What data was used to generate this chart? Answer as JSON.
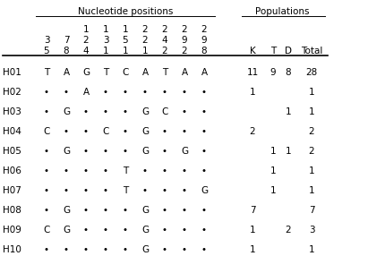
{
  "title_left": "Nucleotide positions",
  "title_right": "Populations",
  "subh_row1": [
    "",
    "",
    "1",
    "1",
    "1",
    "2",
    "2",
    "2",
    "2"
  ],
  "subh_row2": [
    "3",
    "7",
    "2",
    "3",
    "5",
    "2",
    "4",
    "9",
    "9"
  ],
  "subh_row3": [
    "5",
    "8",
    "4",
    "1",
    "1",
    "1",
    "2",
    "2",
    "8"
  ],
  "pop_headers": [
    "K",
    "T",
    "D",
    "Total"
  ],
  "haplotypes": [
    "H01",
    "H02",
    "H03",
    "H04",
    "H05",
    "H06",
    "H07",
    "H08",
    "H09",
    "H10"
  ],
  "nucleotide_data": [
    [
      "T",
      "A",
      "G",
      "T",
      "C",
      "A",
      "T",
      "A",
      "A"
    ],
    [
      "•",
      "•",
      "A",
      "•",
      "•",
      "•",
      "•",
      "•",
      "•"
    ],
    [
      "•",
      "G",
      "•",
      "•",
      "•",
      "G",
      "C",
      "•",
      "•"
    ],
    [
      "C",
      "•",
      "•",
      "C",
      "•",
      "G",
      "•",
      "•",
      "•"
    ],
    [
      "•",
      "G",
      "•",
      "•",
      "•",
      "G",
      "•",
      "G",
      "•"
    ],
    [
      "•",
      "•",
      "•",
      "•",
      "T",
      "•",
      "•",
      "•",
      "•"
    ],
    [
      "•",
      "•",
      "•",
      "•",
      "T",
      "•",
      "•",
      "•",
      "G"
    ],
    [
      "•",
      "G",
      "•",
      "•",
      "•",
      "G",
      "•",
      "•",
      "•"
    ],
    [
      "C",
      "G",
      "•",
      "•",
      "•",
      "G",
      "•",
      "•",
      "•"
    ],
    [
      "•",
      "•",
      "•",
      "•",
      "•",
      "G",
      "•",
      "•",
      "•"
    ]
  ],
  "population_data": [
    [
      "11",
      "9",
      "8",
      "28"
    ],
    [
      "1",
      "",
      "",
      "1"
    ],
    [
      "",
      "",
      "1",
      "1"
    ],
    [
      "2",
      "",
      "",
      "2"
    ],
    [
      "",
      "1",
      "1",
      "2"
    ],
    [
      "",
      "1",
      "",
      "1"
    ],
    [
      "",
      "1",
      "",
      "1"
    ],
    [
      "7",
      "",
      "",
      "7"
    ],
    [
      "1",
      "",
      "2",
      "3"
    ],
    [
      "1",
      "",
      "",
      "1"
    ]
  ],
  "fontsize": 7.5,
  "bg_color": "#ffffff"
}
